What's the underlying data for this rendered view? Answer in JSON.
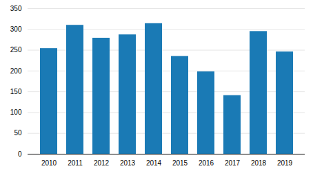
{
  "chart_data": {
    "type": "bar",
    "categories": [
      "2010",
      "2011",
      "2012",
      "2013",
      "2014",
      "2015",
      "2016",
      "2017",
      "2018",
      "2019"
    ],
    "values": [
      254,
      310,
      279,
      287,
      314,
      235,
      198,
      141,
      295,
      246
    ],
    "color": "#1a7ab5",
    "ylim": [
      0,
      350
    ],
    "yticks": [
      0,
      50,
      100,
      150,
      200,
      250,
      300,
      350
    ],
    "grid": true
  }
}
